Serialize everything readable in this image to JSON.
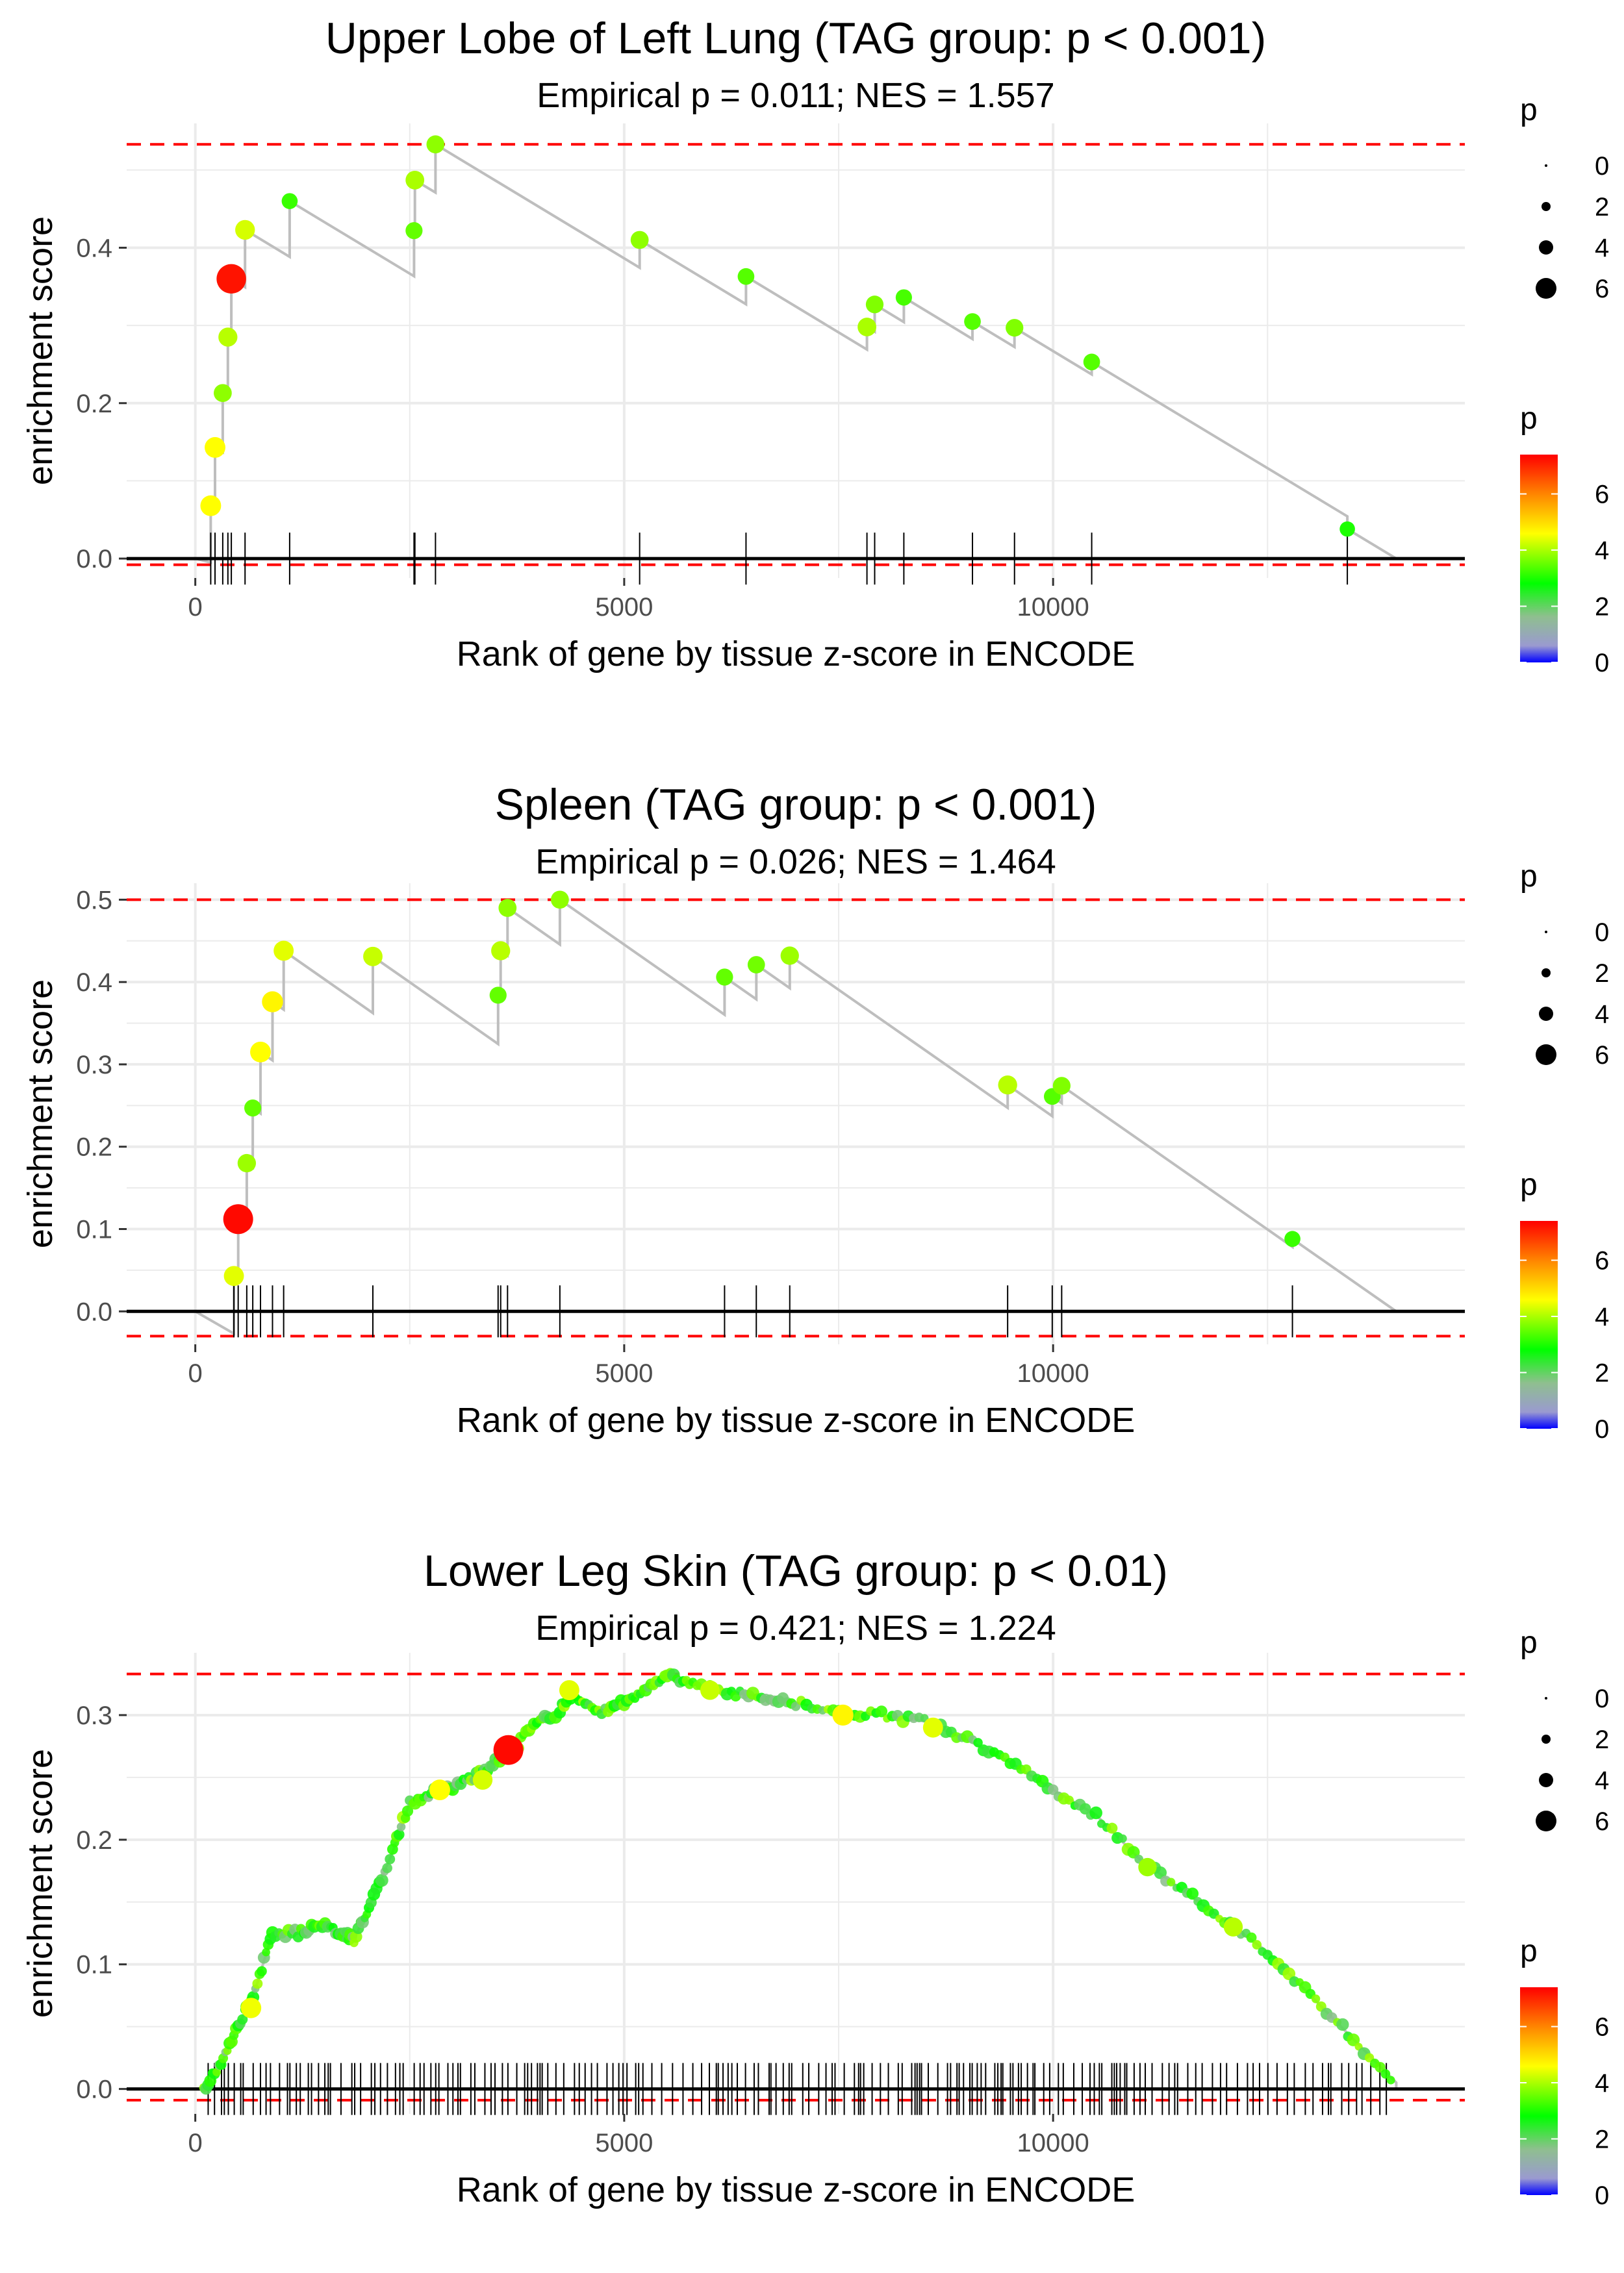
{
  "colors": {
    "threshold_line": "#ff0000",
    "curve": "#bebebe",
    "grid": "#ebebeb",
    "axis": "#000000",
    "scale_stops": [
      "#0000ff",
      "#9a9ad0",
      "#8fbf8f",
      "#00ff00",
      "#ffff00",
      "#ff8c00",
      "#ff0000"
    ]
  },
  "chart_data": [
    {
      "type": "line",
      "title": "Upper Lobe of Left Lung (TAG group: p < 0.001)",
      "subtitle": "Empirical p = 0.011; NES = 1.557",
      "xlabel": "Rank of gene by tissue z-score in ENCODE",
      "ylabel": "enrichment score",
      "xlim": [
        -800,
        14800
      ],
      "ylim": [
        -0.025,
        0.56
      ],
      "x_ticks": [
        0,
        5000,
        10000
      ],
      "x_tick_labels": [
        "0",
        "5000",
        "10000"
      ],
      "y_ticks": [
        0.0,
        0.2,
        0.4
      ],
      "y_tick_labels": [
        "0.0",
        "0.2",
        "0.4"
      ],
      "threshold_max": 0.533,
      "threshold_min": -0.008,
      "curve_end_x": 14000,
      "hits": [
        {
          "x": 180,
          "y": 0.068,
          "p": 4.6
        },
        {
          "x": 230,
          "y": 0.143,
          "p": 4.6
        },
        {
          "x": 320,
          "y": 0.213,
          "p": 3.8
        },
        {
          "x": 380,
          "y": 0.285,
          "p": 4.1
        },
        {
          "x": 420,
          "y": 0.36,
          "p": 7.2
        },
        {
          "x": 580,
          "y": 0.423,
          "p": 4.3
        },
        {
          "x": 1100,
          "y": 0.46,
          "p": 3.2
        },
        {
          "x": 2550,
          "y": 0.422,
          "p": 3.5
        },
        {
          "x": 2560,
          "y": 0.487,
          "p": 4.0
        },
        {
          "x": 2800,
          "y": 0.533,
          "p": 3.8
        },
        {
          "x": 5180,
          "y": 0.41,
          "p": 3.8
        },
        {
          "x": 6420,
          "y": 0.363,
          "p": 3.4
        },
        {
          "x": 7830,
          "y": 0.298,
          "p": 4.0
        },
        {
          "x": 7920,
          "y": 0.327,
          "p": 3.7
        },
        {
          "x": 8260,
          "y": 0.336,
          "p": 3.3
        },
        {
          "x": 9060,
          "y": 0.305,
          "p": 3.4
        },
        {
          "x": 9550,
          "y": 0.297,
          "p": 3.7
        },
        {
          "x": 10450,
          "y": 0.253,
          "p": 3.4
        },
        {
          "x": 13430,
          "y": 0.038,
          "p": 3.0
        }
      ],
      "size_legend": {
        "title": "p",
        "labels": [
          "0",
          "2",
          "4",
          "6"
        ]
      },
      "color_legend": {
        "title": "p",
        "labels": [
          "0",
          "2",
          "4",
          "6"
        ],
        "range": [
          0,
          7.4
        ]
      }
    },
    {
      "type": "line",
      "title": "Spleen (TAG group: p < 0.001)",
      "subtitle": "Empirical p = 0.026; NES = 1.464",
      "xlabel": "Rank of gene by tissue z-score in ENCODE",
      "ylabel": "enrichment score",
      "xlim": [
        -800,
        14800
      ],
      "ylim": [
        -0.04,
        0.52
      ],
      "x_ticks": [
        0,
        5000,
        10000
      ],
      "x_tick_labels": [
        "0",
        "5000",
        "10000"
      ],
      "y_ticks": [
        0.0,
        0.1,
        0.2,
        0.3,
        0.4,
        0.5
      ],
      "y_tick_labels": [
        "0.0",
        "0.1",
        "0.2",
        "0.3",
        "0.4",
        "0.5"
      ],
      "threshold_max": 0.5,
      "threshold_min": -0.03,
      "curve_end_x": 14000,
      "hits": [
        {
          "x": 450,
          "y": 0.043,
          "p": 4.4
        },
        {
          "x": 500,
          "y": 0.112,
          "p": 7.3
        },
        {
          "x": 600,
          "y": 0.18,
          "p": 3.9
        },
        {
          "x": 670,
          "y": 0.247,
          "p": 3.5
        },
        {
          "x": 760,
          "y": 0.315,
          "p": 4.6
        },
        {
          "x": 900,
          "y": 0.376,
          "p": 4.7
        },
        {
          "x": 1030,
          "y": 0.438,
          "p": 4.4
        },
        {
          "x": 2070,
          "y": 0.431,
          "p": 4.2
        },
        {
          "x": 3530,
          "y": 0.384,
          "p": 3.5
        },
        {
          "x": 3560,
          "y": 0.438,
          "p": 4.1
        },
        {
          "x": 3640,
          "y": 0.49,
          "p": 3.8
        },
        {
          "x": 4250,
          "y": 0.5,
          "p": 3.8
        },
        {
          "x": 6170,
          "y": 0.406,
          "p": 3.5
        },
        {
          "x": 6540,
          "y": 0.421,
          "p": 3.6
        },
        {
          "x": 6930,
          "y": 0.432,
          "p": 3.9
        },
        {
          "x": 9470,
          "y": 0.275,
          "p": 4.1
        },
        {
          "x": 9990,
          "y": 0.261,
          "p": 3.4
        },
        {
          "x": 10100,
          "y": 0.274,
          "p": 3.7
        },
        {
          "x": 12790,
          "y": 0.088,
          "p": 3.2
        }
      ],
      "size_legend": {
        "title": "p",
        "labels": [
          "0",
          "2",
          "4",
          "6"
        ]
      },
      "color_legend": {
        "title": "p",
        "labels": [
          "0",
          "2",
          "4",
          "6"
        ],
        "range": [
          0,
          7.4
        ]
      }
    },
    {
      "type": "line",
      "title": "Lower Leg Skin (TAG group: p < 0.01)",
      "subtitle": "Empirical p = 0.421; NES = 1.224",
      "xlabel": "Rank of gene by tissue z-score in ENCODE",
      "ylabel": "enrichment score",
      "xlim": [
        -800,
        14800
      ],
      "ylim": [
        -0.02,
        0.35
      ],
      "x_ticks": [
        0,
        5000,
        10000
      ],
      "x_tick_labels": [
        "0",
        "5000",
        "10000"
      ],
      "y_ticks": [
        0.0,
        0.1,
        0.2,
        0.3
      ],
      "y_tick_labels": [
        "0.0",
        "0.1",
        "0.2",
        "0.3"
      ],
      "threshold_max": 0.333,
      "threshold_min": -0.009,
      "curve_end_x": 14000,
      "curve": [
        [
          100,
          0.0
        ],
        [
          300,
          0.02
        ],
        [
          500,
          0.05
        ],
        [
          700,
          0.08
        ],
        [
          900,
          0.125
        ],
        [
          1200,
          0.125
        ],
        [
          1450,
          0.133
        ],
        [
          1700,
          0.125
        ],
        [
          1850,
          0.12
        ],
        [
          2050,
          0.15
        ],
        [
          2300,
          0.19
        ],
        [
          2500,
          0.23
        ],
        [
          2750,
          0.238
        ],
        [
          3000,
          0.243
        ],
        [
          3250,
          0.25
        ],
        [
          3500,
          0.262
        ],
        [
          3700,
          0.27
        ],
        [
          3950,
          0.295
        ],
        [
          4200,
          0.3
        ],
        [
          4400,
          0.318
        ],
        [
          4700,
          0.302
        ],
        [
          5000,
          0.31
        ],
        [
          5250,
          0.32
        ],
        [
          5500,
          0.333
        ],
        [
          5800,
          0.325
        ],
        [
          6200,
          0.318
        ],
        [
          6600,
          0.315
        ],
        [
          7000,
          0.31
        ],
        [
          7500,
          0.302
        ],
        [
          8000,
          0.3
        ],
        [
          8500,
          0.295
        ],
        [
          9000,
          0.28
        ],
        [
          9500,
          0.262
        ],
        [
          10000,
          0.24
        ],
        [
          10500,
          0.22
        ],
        [
          11000,
          0.185
        ],
        [
          11500,
          0.16
        ],
        [
          12000,
          0.135
        ],
        [
          12500,
          0.11
        ],
        [
          13000,
          0.075
        ],
        [
          13500,
          0.04
        ],
        [
          14000,
          0.005
        ]
      ],
      "highlight_hits": [
        {
          "x": 650,
          "y": 0.065,
          "p": 4.5
        },
        {
          "x": 3650,
          "y": 0.272,
          "p": 7.3
        },
        {
          "x": 4360,
          "y": 0.32,
          "p": 4.4
        },
        {
          "x": 2850,
          "y": 0.24,
          "p": 4.6
        },
        {
          "x": 3350,
          "y": 0.248,
          "p": 4.3
        },
        {
          "x": 7550,
          "y": 0.3,
          "p": 4.7
        },
        {
          "x": 6000,
          "y": 0.32,
          "p": 4.2
        },
        {
          "x": 8600,
          "y": 0.29,
          "p": 4.4
        },
        {
          "x": 11100,
          "y": 0.178,
          "p": 3.9
        },
        {
          "x": 12100,
          "y": 0.13,
          "p": 4.1
        }
      ],
      "size_legend": {
        "title": "p",
        "labels": [
          "0",
          "2",
          "4",
          "6"
        ]
      },
      "color_legend": {
        "title": "p",
        "labels": [
          "0",
          "2",
          "4",
          "6"
        ],
        "range": [
          0,
          7.4
        ]
      }
    }
  ]
}
